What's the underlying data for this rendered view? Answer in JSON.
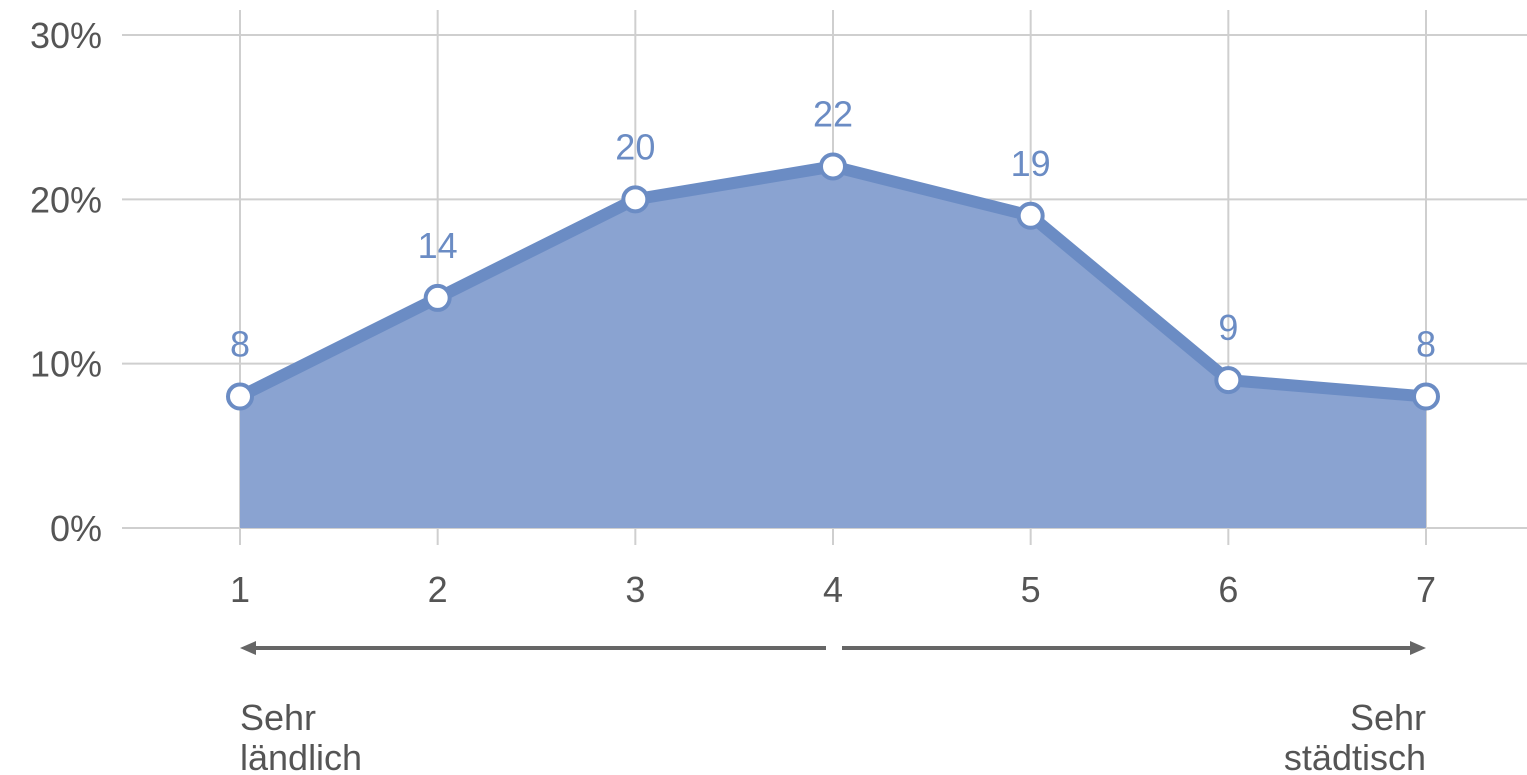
{
  "chart_data": {
    "type": "area",
    "title": "",
    "xlabel": "",
    "ylabel": "",
    "categories": [
      "1",
      "2",
      "3",
      "4",
      "5",
      "6",
      "7"
    ],
    "series": [
      {
        "values": [
          8,
          14,
          20,
          22,
          19,
          9,
          8
        ]
      }
    ],
    "data_labels": [
      "8",
      "14",
      "20",
      "22",
      "19",
      "9",
      "8"
    ],
    "ylim": [
      0,
      30
    ],
    "yticks": [
      0,
      10,
      20,
      30
    ],
    "ytick_labels": [
      "0%",
      "10%",
      "20%",
      "30%"
    ],
    "grid": true,
    "scale_left_label": [
      "Sehr",
      "ländlich"
    ],
    "scale_right_label": [
      "Sehr",
      "städtisch"
    ],
    "colors": {
      "line": "#6b8cc4",
      "fill": "#8aa3d1",
      "grid": "#cfcfcf",
      "text": "#555555",
      "arrow": "#666666"
    }
  }
}
